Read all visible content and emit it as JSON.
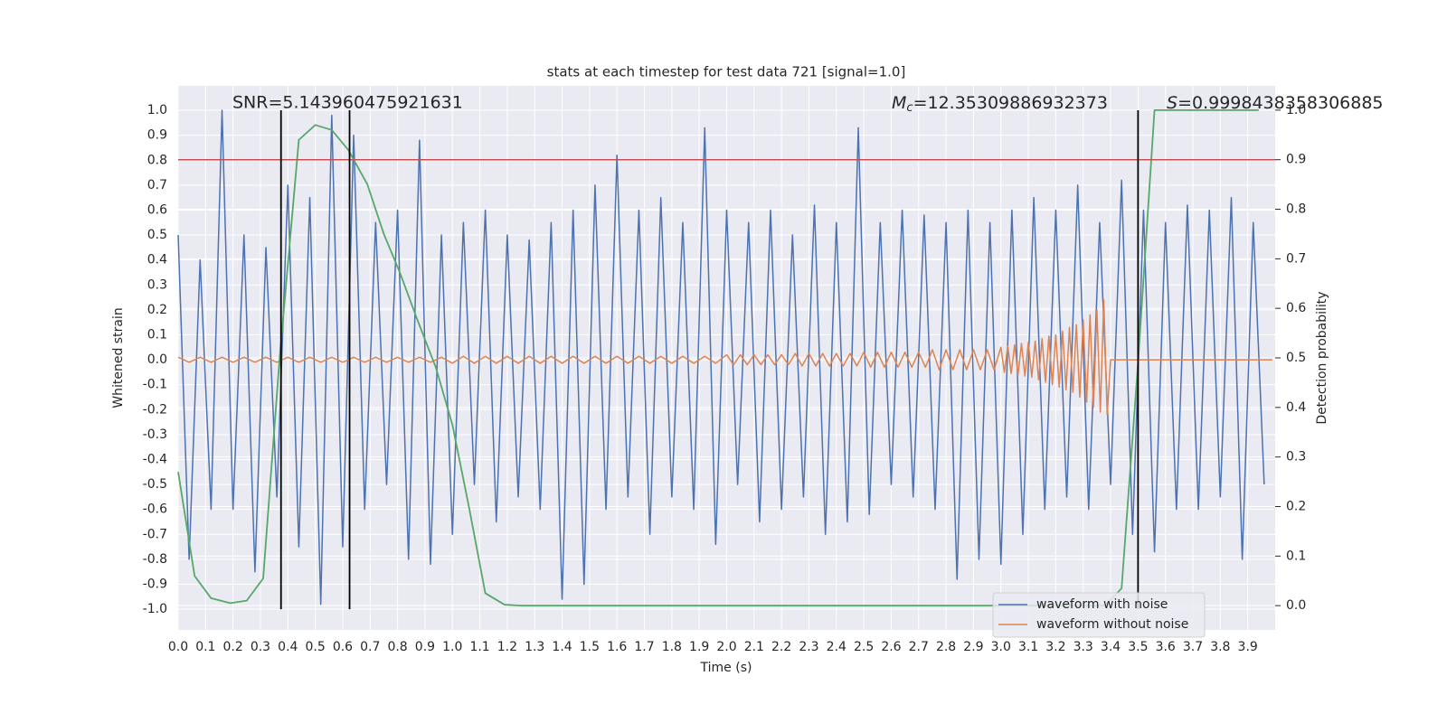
{
  "chart_data": {
    "type": "line",
    "title": "stats at each timestep for test data 721 [signal=1.0]",
    "xlabel": "Time (s)",
    "ylabel": "Whitened strain",
    "y2label": "Detection probability",
    "xlim": [
      0,
      4.0
    ],
    "ylim": [
      -1.083,
      1.098
    ],
    "y2lim": [
      -0.049,
      1.049
    ],
    "grid": true,
    "legend": "lower right",
    "xticks": [
      {
        "value": 0,
        "label": "0.0"
      },
      0.1,
      0.2,
      0.3,
      0.4,
      0.5,
      0.6,
      0.7,
      0.8,
      0.9,
      {
        "value": 1,
        "label": "1.0"
      },
      1.1,
      1.2,
      1.3,
      1.4,
      1.5,
      1.6,
      1.7,
      1.8,
      1.9,
      {
        "value": 2,
        "label": "2.0"
      },
      2.1,
      2.2,
      2.3,
      2.4,
      2.5,
      2.6,
      2.7,
      2.8,
      2.9,
      {
        "value": 3,
        "label": "3.0"
      },
      3.1,
      3.2,
      3.3,
      3.4,
      3.5,
      3.6,
      3.7,
      3.8,
      3.9
    ],
    "yticks": [
      {
        "value": -1,
        "label": "-1.0"
      },
      -0.9,
      -0.8,
      -0.7,
      -0.6,
      -0.5,
      -0.4,
      -0.3,
      -0.2,
      -0.1,
      {
        "value": 0,
        "label": "0.0"
      },
      0.1,
      0.2,
      0.3,
      0.4,
      0.5,
      0.6,
      0.7,
      0.8,
      0.9,
      {
        "value": 1,
        "label": "1.0"
      }
    ],
    "y2ticks": [
      {
        "value": 0,
        "label": "0.0"
      },
      0.1,
      0.2,
      0.3,
      0.4,
      0.5,
      0.6,
      0.7,
      0.8,
      0.9,
      {
        "value": 1,
        "label": "1.0"
      }
    ],
    "annotations": {
      "snr": "SNR=5.143960475921631",
      "mc": [
        "M",
        "c",
        "=12.35309886932373"
      ],
      "s": [
        "S",
        "=0.9998438358306885"
      ]
    },
    "threshold": {
      "value": 0.9,
      "axis": "y2",
      "color": "#c44e52"
    },
    "vlines": {
      "x": [
        0.375,
        0.625,
        3.5
      ],
      "ymin": -1,
      "ymax": 1,
      "color": "#000000"
    },
    "series": [
      {
        "name": "waveform with noise",
        "color": "#4c72b0",
        "x": [
          0,
          0.04,
          0.08,
          0.12,
          0.16,
          0.2,
          0.24,
          0.28,
          0.32,
          0.36,
          0.4,
          0.44,
          0.48,
          0.52,
          0.56,
          0.6,
          0.64,
          0.68,
          0.72,
          0.76,
          0.8,
          0.84,
          0.88,
          0.92,
          0.96,
          1.0,
          1.04,
          1.08,
          1.12,
          1.16,
          1.2,
          1.24,
          1.28,
          1.32,
          1.36,
          1.4,
          1.44,
          1.48,
          1.52,
          1.56,
          1.6,
          1.64,
          1.68,
          1.72,
          1.76,
          1.8,
          1.84,
          1.88,
          1.92,
          1.96,
          2.0,
          2.04,
          2.08,
          2.12,
          2.16,
          2.2,
          2.24,
          2.28,
          2.32,
          2.36,
          2.4,
          2.44,
          2.48,
          2.52,
          2.56,
          2.6,
          2.64,
          2.68,
          2.72,
          2.76,
          2.8,
          2.84,
          2.88,
          2.92,
          2.96,
          3.0,
          3.04,
          3.08,
          3.12,
          3.16,
          3.2,
          3.24,
          3.28,
          3.32,
          3.36,
          3.4,
          3.44,
          3.48,
          3.52,
          3.56,
          3.6,
          3.64,
          3.68,
          3.72,
          3.76,
          3.8,
          3.84,
          3.88,
          3.92,
          3.96
        ],
        "values": [
          0.5,
          -0.8,
          0.4,
          -0.6,
          1.0,
          -0.6,
          0.5,
          -0.85,
          0.45,
          -0.55,
          0.7,
          -0.75,
          0.65,
          -0.98,
          0.98,
          -0.75,
          0.9,
          -0.6,
          0.55,
          -0.5,
          0.6,
          -0.8,
          0.88,
          -0.82,
          0.5,
          -0.7,
          0.55,
          -0.5,
          0.6,
          -0.65,
          0.5,
          -0.55,
          0.48,
          -0.6,
          0.55,
          -0.96,
          0.6,
          -0.9,
          0.7,
          -0.6,
          0.82,
          -0.55,
          0.6,
          -0.7,
          0.65,
          -0.55,
          0.55,
          -0.6,
          0.93,
          -0.74,
          0.6,
          -0.5,
          0.55,
          -0.65,
          0.6,
          -0.6,
          0.5,
          -0.55,
          0.62,
          -0.7,
          0.55,
          -0.65,
          0.93,
          -0.62,
          0.55,
          -0.5,
          0.6,
          -0.55,
          0.58,
          -0.6,
          0.55,
          -0.88,
          0.6,
          -0.8,
          0.55,
          -0.82,
          0.6,
          -0.7,
          0.65,
          -0.6,
          0.6,
          -0.55,
          0.7,
          -0.6,
          0.55,
          -0.5,
          0.72,
          -0.7,
          0.6,
          -0.77,
          0.55,
          -0.6,
          0.62,
          -0.6,
          0.6,
          -0.55,
          0.65,
          -0.8,
          0.55,
          -0.5
        ]
      },
      {
        "name": "waveform without noise",
        "color": "#dd8452",
        "x": [
          0,
          0.04,
          0.08,
          0.12,
          0.16,
          0.2,
          0.24,
          0.28,
          0.32,
          0.36,
          0.4,
          0.44,
          0.48,
          0.52,
          0.56,
          0.6,
          0.64,
          0.68,
          0.72,
          0.76,
          0.8,
          0.84,
          0.88,
          0.92,
          0.96,
          1.0,
          1.04,
          1.08,
          1.12,
          1.16,
          1.2,
          1.24,
          1.28,
          1.32,
          1.36,
          1.4,
          1.44,
          1.48,
          1.52,
          1.56,
          1.6,
          1.64,
          1.68,
          1.72,
          1.76,
          1.8,
          1.84,
          1.88,
          1.92,
          1.96,
          2.0,
          2.025,
          2.05,
          2.075,
          2.1,
          2.125,
          2.15,
          2.175,
          2.2,
          2.225,
          2.25,
          2.275,
          2.3,
          2.325,
          2.35,
          2.375,
          2.4,
          2.425,
          2.45,
          2.475,
          2.5,
          2.525,
          2.55,
          2.575,
          2.6,
          2.625,
          2.65,
          2.675,
          2.7,
          2.725,
          2.75,
          2.775,
          2.8,
          2.825,
          2.85,
          2.875,
          2.9,
          2.925,
          2.95,
          2.975,
          3.0,
          3.0125,
          3.025,
          3.0375,
          3.05,
          3.0625,
          3.075,
          3.0875,
          3.1,
          3.1125,
          3.125,
          3.1375,
          3.15,
          3.1625,
          3.175,
          3.1875,
          3.2,
          3.2125,
          3.225,
          3.2375,
          3.25,
          3.2625,
          3.275,
          3.2875,
          3.3,
          3.3125,
          3.325,
          3.3375,
          3.35,
          3.3625,
          3.375,
          3.3875,
          3.4,
          3.99
        ],
        "values": [
          0.01,
          -0.01,
          0.01,
          -0.01,
          0.01,
          -0.01,
          0.01,
          -0.01,
          0.01,
          -0.01,
          0.01,
          -0.01,
          0.01,
          -0.01,
          0.01,
          -0.01,
          0.01,
          -0.01,
          0.01,
          -0.01,
          0.01,
          -0.01,
          0.01,
          -0.01,
          0.01,
          -0.014,
          0.014,
          -0.014,
          0.014,
          -0.014,
          0.014,
          -0.014,
          0.014,
          -0.014,
          0.014,
          -0.014,
          0.014,
          -0.014,
          0.014,
          -0.014,
          0.014,
          -0.014,
          0.014,
          -0.014,
          0.014,
          -0.014,
          0.014,
          -0.014,
          0.014,
          -0.014,
          0.02,
          -0.02,
          0.02,
          -0.02,
          0.02,
          -0.02,
          0.02,
          -0.02,
          0.02,
          -0.02,
          0.025,
          -0.025,
          0.025,
          -0.025,
          0.025,
          -0.025,
          0.025,
          -0.025,
          0.025,
          -0.025,
          0.03,
          -0.03,
          0.03,
          -0.03,
          0.03,
          -0.03,
          0.03,
          -0.03,
          0.03,
          -0.03,
          0.04,
          -0.04,
          0.04,
          -0.04,
          0.04,
          -0.04,
          0.04,
          -0.04,
          0.04,
          -0.04,
          0.05,
          -0.05,
          0.055,
          -0.055,
          0.06,
          -0.06,
          0.065,
          -0.065,
          0.07,
          -0.07,
          0.075,
          -0.08,
          0.085,
          -0.09,
          0.095,
          -0.1,
          0.1,
          -0.11,
          0.115,
          -0.12,
          0.13,
          -0.13,
          0.14,
          -0.15,
          0.16,
          -0.17,
          0.18,
          -0.19,
          0.2,
          -0.21,
          0.24,
          -0.22,
          0,
          0
        ]
      },
      {
        "color": "#55a868",
        "axis": "y2",
        "x": [
          0,
          0.06,
          0.12,
          0.19,
          0.25,
          0.31,
          0.37,
          0.44,
          0.5,
          0.56,
          0.62,
          0.69,
          0.75,
          0.81,
          0.87,
          0.94,
          1.0,
          1.06,
          1.12,
          1.19,
          1.25,
          3.38,
          3.44,
          3.5,
          3.56,
          3.94
        ],
        "values": [
          0.27,
          0.06,
          0.015,
          0.005,
          0.01,
          0.055,
          0.5,
          0.94,
          0.97,
          0.96,
          0.92,
          0.85,
          0.75,
          0.67,
          0.58,
          0.48,
          0.365,
          0.2,
          0.025,
          0.002,
          0,
          0,
          0.035,
          0.49,
          1.0,
          1.0
        ]
      }
    ]
  }
}
